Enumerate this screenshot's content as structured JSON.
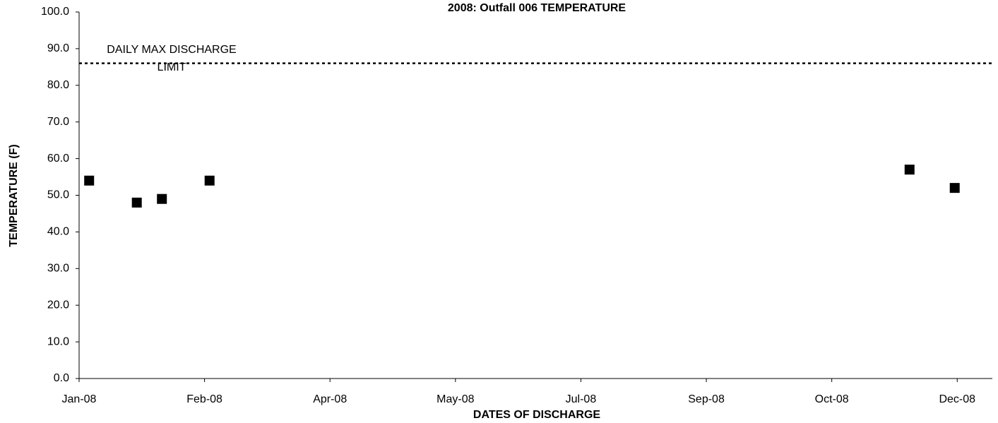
{
  "chart_data": {
    "type": "scatter",
    "title": "2008: Outfall 006 TEMPERATURE",
    "xlabel": "DATES OF DISCHARGE",
    "ylabel": "TEMPERATURE (F)",
    "x": [
      4,
      23,
      33,
      52,
      331,
      349
    ],
    "values": [
      54,
      48,
      49,
      54,
      57,
      52
    ],
    "color": "#000000",
    "xlim": [
      0,
      364
    ],
    "xticks": [
      {
        "value": 0,
        "label": "Jan-08"
      },
      {
        "value": 50,
        "label": "Feb-08"
      },
      {
        "value": 100,
        "label": "Apr-08"
      },
      {
        "value": 150,
        "label": "May-08"
      },
      {
        "value": 200,
        "label": "Jul-08"
      },
      {
        "value": 250,
        "label": "Sep-08"
      },
      {
        "value": 300,
        "label": "Oct-08"
      },
      {
        "value": 350,
        "label": "Dec-08"
      }
    ],
    "ylim": [
      0,
      100
    ],
    "yticks": [
      {
        "value": 0,
        "label": "0.0"
      },
      {
        "value": 10,
        "label": "10.0"
      },
      {
        "value": 20,
        "label": "20.0"
      },
      {
        "value": 30,
        "label": "30.0"
      },
      {
        "value": 40,
        "label": "40.0"
      },
      {
        "value": 50,
        "label": "50.0"
      },
      {
        "value": 60,
        "label": "60.0"
      },
      {
        "value": 70,
        "label": "70.0"
      },
      {
        "value": 80,
        "label": "80.0"
      },
      {
        "value": 90,
        "label": "90.0"
      },
      {
        "value": 100,
        "label": "100.0"
      }
    ],
    "limit": 86,
    "annotation": [
      "DAILY MAX DISCHARGE",
      "LIMIT"
    ]
  }
}
